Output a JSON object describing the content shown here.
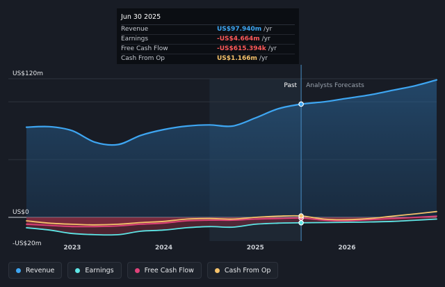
{
  "tooltip": {
    "date": "Jun 30 2025",
    "rows": [
      {
        "label": "Revenue",
        "value": "US$97.940m",
        "unit": "/yr",
        "color": "#3ea6f2"
      },
      {
        "label": "Earnings",
        "value": "-US$4.664m",
        "unit": "/yr",
        "color": "#ff5a5a"
      },
      {
        "label": "Free Cash Flow",
        "value": "-US$615.394k",
        "unit": "/yr",
        "color": "#ff5a5a"
      },
      {
        "label": "Cash From Op",
        "value": "US$1.166m",
        "unit": "/yr",
        "color": "#f5c26b"
      }
    ]
  },
  "legend": [
    {
      "label": "Revenue",
      "color": "#3ea6f2"
    },
    {
      "label": "Earnings",
      "color": "#5ee6e6"
    },
    {
      "label": "Free Cash Flow",
      "color": "#e0427a"
    },
    {
      "label": "Cash From Op",
      "color": "#f5c26b"
    }
  ],
  "chart_data": {
    "type": "line",
    "title": "",
    "divider_label_past": "Past",
    "divider_label_forecast": "Analysts Forecasts",
    "divider_x": 2025.5,
    "xlim": [
      2022.5,
      2026.98
    ],
    "ylim": [
      -20,
      120
    ],
    "ytick_labels": [
      {
        "value": 120,
        "label": "US$120m"
      },
      {
        "value": 0,
        "label": "US$0"
      },
      {
        "value": -20,
        "label": "-US$20m"
      }
    ],
    "xtick_labels": [
      {
        "value": 2023,
        "label": "2023"
      },
      {
        "value": 2024,
        "label": "2024"
      },
      {
        "value": 2025,
        "label": "2025"
      },
      {
        "value": 2026,
        "label": "2026"
      }
    ],
    "gridlines": [
      120,
      100,
      50,
      0
    ],
    "highlight_x": 2025.5,
    "series": [
      {
        "name": "Revenue",
        "color": "#3ea6f2",
        "x": [
          2022.5,
          2022.75,
          2023.0,
          2023.25,
          2023.5,
          2023.75,
          2024.0,
          2024.25,
          2024.5,
          2024.75,
          2025.0,
          2025.25,
          2025.5,
          2025.75,
          2026.0,
          2026.25,
          2026.5,
          2026.75,
          2026.98
        ],
        "y": [
          78,
          78.5,
          75,
          65,
          63,
          71,
          76,
          79,
          80,
          79,
          86,
          94,
          98,
          100,
          103,
          106,
          110,
          114,
          119
        ]
      },
      {
        "name": "Earnings",
        "color": "#5ee6e6",
        "x": [
          2022.5,
          2022.75,
          2023.0,
          2023.25,
          2023.5,
          2023.75,
          2024.0,
          2024.25,
          2024.5,
          2024.75,
          2025.0,
          2025.25,
          2025.5,
          2025.75,
          2026.0,
          2026.25,
          2026.5,
          2026.75,
          2026.98
        ],
        "y": [
          -9,
          -11,
          -14,
          -15,
          -15,
          -12,
          -11,
          -9,
          -8,
          -8.5,
          -6,
          -5,
          -4.7,
          -4.5,
          -4.3,
          -4,
          -3.5,
          -2.5,
          -1.5
        ]
      },
      {
        "name": "Free Cash Flow",
        "color": "#e0427a",
        "x": [
          2022.5,
          2022.75,
          2023.0,
          2023.25,
          2023.5,
          2023.75,
          2024.0,
          2024.25,
          2024.5,
          2024.75,
          2025.0,
          2025.25,
          2025.5,
          2025.75,
          2026.0,
          2026.25,
          2026.5,
          2026.75,
          2026.98
        ],
        "y": [
          -6,
          -7,
          -8,
          -8,
          -7.5,
          -6,
          -5,
          -3,
          -2.5,
          -2.5,
          -1.5,
          -1,
          -0.6,
          -2.5,
          -3,
          -2,
          -1,
          0,
          1
        ]
      },
      {
        "name": "Cash From Op",
        "color": "#f5c26b",
        "x": [
          2022.5,
          2022.75,
          2023.0,
          2023.25,
          2023.5,
          2023.75,
          2024.0,
          2024.25,
          2024.5,
          2024.75,
          2025.0,
          2025.25,
          2025.5,
          2025.75,
          2026.0,
          2026.25,
          2026.5,
          2026.75,
          2026.98
        ],
        "y": [
          -3,
          -5,
          -6,
          -6.5,
          -6,
          -4.5,
          -3.5,
          -1.5,
          -1,
          -1.5,
          0,
          1,
          1.2,
          -1.5,
          -2,
          -1,
          1,
          3,
          5
        ]
      }
    ]
  }
}
